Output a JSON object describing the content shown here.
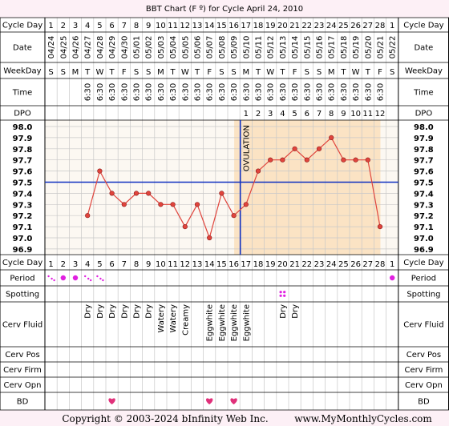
{
  "title": "BBT Chart (F º) for Cycle April 24, 2010",
  "row_labels": {
    "cycle_day": "Cycle Day",
    "date": "Date",
    "weekday": "WeekDay",
    "time": "Time",
    "dpo": "DPO",
    "period": "Period",
    "spotting": "Spotting",
    "cerv_fluid": "Cerv Fluid",
    "cerv_pos": "Cerv Pos",
    "cerv_firm": "Cerv Firm",
    "cerv_opn": "Cerv Opn",
    "bd": "BD"
  },
  "columns": [
    {
      "day": "1",
      "date": "04/24",
      "weekday": "S",
      "time": "",
      "dpo": "",
      "cf": "",
      "bd": false
    },
    {
      "day": "2",
      "date": "04/25",
      "weekday": "S",
      "time": "",
      "dpo": "",
      "cf": "",
      "bd": false
    },
    {
      "day": "3",
      "date": "04/26",
      "weekday": "M",
      "time": "",
      "dpo": "",
      "cf": "",
      "bd": false
    },
    {
      "day": "4",
      "date": "04/27",
      "weekday": "T",
      "time": "6:30",
      "dpo": "",
      "cf": "Dry",
      "bd": false
    },
    {
      "day": "5",
      "date": "04/28",
      "weekday": "W",
      "time": "6:30",
      "dpo": "",
      "cf": "Dry",
      "bd": false
    },
    {
      "day": "6",
      "date": "04/29",
      "weekday": "T",
      "time": "6:30",
      "dpo": "",
      "cf": "Dry",
      "bd": true
    },
    {
      "day": "7",
      "date": "04/30",
      "weekday": "F",
      "time": "6:30",
      "dpo": "",
      "cf": "Dry",
      "bd": false
    },
    {
      "day": "8",
      "date": "05/01",
      "weekday": "S",
      "time": "6:30",
      "dpo": "",
      "cf": "Dry",
      "bd": false
    },
    {
      "day": "9",
      "date": "05/02",
      "weekday": "S",
      "time": "6:30",
      "dpo": "",
      "cf": "Dry",
      "bd": false
    },
    {
      "day": "10",
      "date": "05/03",
      "weekday": "M",
      "time": "6:30",
      "dpo": "",
      "cf": "Watery",
      "bd": false
    },
    {
      "day": "11",
      "date": "05/04",
      "weekday": "T",
      "time": "6:30",
      "dpo": "",
      "cf": "Watery",
      "bd": false
    },
    {
      "day": "12",
      "date": "05/05",
      "weekday": "W",
      "time": "6:30",
      "dpo": "",
      "cf": "Creamy",
      "bd": false
    },
    {
      "day": "13",
      "date": "05/06",
      "weekday": "T",
      "time": "6:30",
      "dpo": "",
      "cf": "",
      "bd": false
    },
    {
      "day": "14",
      "date": "05/07",
      "weekday": "F",
      "time": "6:30",
      "dpo": "",
      "cf": "Eggwhite",
      "bd": true
    },
    {
      "day": "15",
      "date": "05/08",
      "weekday": "S",
      "time": "6:30",
      "dpo": "",
      "cf": "Eggwhite",
      "bd": false
    },
    {
      "day": "16",
      "date": "05/09",
      "weekday": "S",
      "time": "6:30",
      "dpo": "",
      "cf": "Eggwhite",
      "bd": true
    },
    {
      "day": "17",
      "date": "05/10",
      "weekday": "M",
      "time": "6:30",
      "dpo": "1",
      "cf": "Eggwhite",
      "bd": false
    },
    {
      "day": "18",
      "date": "05/11",
      "weekday": "T",
      "time": "6:30",
      "dpo": "2",
      "cf": "",
      "bd": false
    },
    {
      "day": "19",
      "date": "05/12",
      "weekday": "W",
      "time": "6:30",
      "dpo": "3",
      "cf": "",
      "bd": false
    },
    {
      "day": "20",
      "date": "05/13",
      "weekday": "T",
      "time": "6:30",
      "dpo": "4",
      "cf": "Dry",
      "bd": false
    },
    {
      "day": "21",
      "date": "05/14",
      "weekday": "F",
      "time": "6:30",
      "dpo": "5",
      "cf": "Dry",
      "bd": false
    },
    {
      "day": "22",
      "date": "05/15",
      "weekday": "S",
      "time": "6:30",
      "dpo": "6",
      "cf": "",
      "bd": false
    },
    {
      "day": "23",
      "date": "05/16",
      "weekday": "S",
      "time": "6:30",
      "dpo": "7",
      "cf": "",
      "bd": false
    },
    {
      "day": "24",
      "date": "05/17",
      "weekday": "M",
      "time": "6:30",
      "dpo": "8",
      "cf": "",
      "bd": false
    },
    {
      "day": "25",
      "date": "05/18",
      "weekday": "T",
      "time": "6:30",
      "dpo": "9",
      "cf": "",
      "bd": false
    },
    {
      "day": "26",
      "date": "05/19",
      "weekday": "W",
      "time": "6:30",
      "dpo": "10",
      "cf": "",
      "bd": false
    },
    {
      "day": "27",
      "date": "05/20",
      "weekday": "T",
      "time": "6:30",
      "dpo": "11",
      "cf": "",
      "bd": false
    },
    {
      "day": "28",
      "date": "05/21",
      "weekday": "F",
      "time": "6:30",
      "dpo": "12",
      "cf": "",
      "bd": false
    },
    {
      "day": "1",
      "date": "05/22",
      "weekday": "S",
      "time": "",
      "dpo": "",
      "cf": "",
      "bd": false
    }
  ],
  "period": [
    {
      "col": 0,
      "kind": "light"
    },
    {
      "col": 1,
      "kind": "medium"
    },
    {
      "col": 2,
      "kind": "medium"
    },
    {
      "col": 3,
      "kind": "light"
    },
    {
      "col": 4,
      "kind": "light"
    },
    {
      "col": 28,
      "kind": "medium"
    }
  ],
  "spotting": [
    {
      "col": 19
    }
  ],
  "ovulation_label": "OVULATION",
  "chart_data": {
    "type": "line",
    "title": "BBT Chart (F º) for Cycle April 24, 2010",
    "y_ticks": [
      "98.0",
      "97.9",
      "97.8",
      "97.7",
      "97.6",
      "97.5",
      "97.4",
      "97.3",
      "97.2",
      "97.1",
      "97.0",
      "96.9"
    ],
    "ylim": [
      96.9,
      98.0
    ],
    "x": [
      "1",
      "2",
      "3",
      "4",
      "5",
      "6",
      "7",
      "8",
      "9",
      "10",
      "11",
      "12",
      "13",
      "14",
      "15",
      "16",
      "17",
      "18",
      "19",
      "20",
      "21",
      "22",
      "23",
      "24",
      "25",
      "26",
      "27",
      "28",
      "1"
    ],
    "temps": [
      null,
      null,
      null,
      97.2,
      97.6,
      97.4,
      97.3,
      97.4,
      97.4,
      97.3,
      97.3,
      97.1,
      97.3,
      97.0,
      97.4,
      97.2,
      97.3,
      97.6,
      97.7,
      97.7,
      97.8,
      97.7,
      97.8,
      97.9,
      97.7,
      97.7,
      97.7,
      97.1,
      null
    ],
    "coverline": 97.5,
    "ovulation_day_index": 15,
    "luteal_start_index": 16,
    "luteal_end_index": 27,
    "colors": {
      "line": "#e0443c",
      "point_fill": "#e0443c",
      "coverline": "#1030c0",
      "luteal_fill": "#fbe3c4",
      "chart_bg": "#fcf8f2",
      "grid": "#c8c8c8",
      "period_dot": "#e020e0",
      "heart": "#e0307a"
    }
  },
  "footer": {
    "copyright": "Copyright © 2003-2024 bInfinity Web Inc.",
    "site": "www.MyMonthlyCycles.com"
  }
}
